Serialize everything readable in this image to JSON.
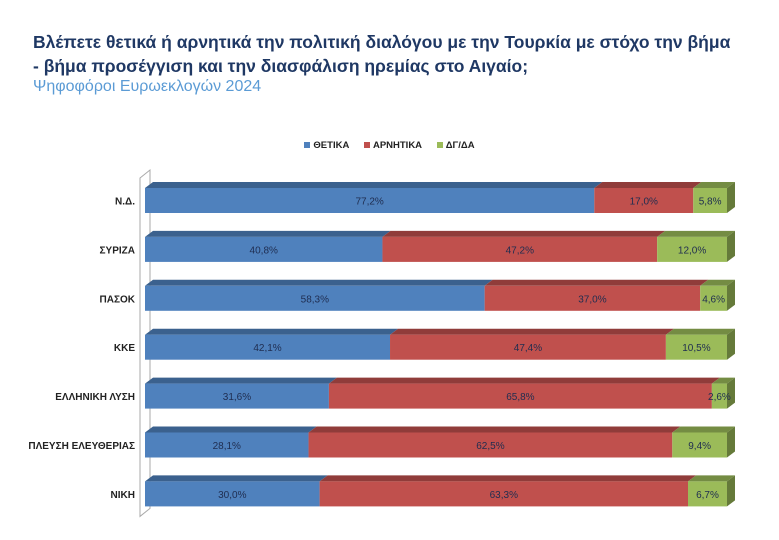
{
  "chart_data": {
    "type": "bar",
    "orientation": "horizontal",
    "stacked": "100%",
    "title": "Βλέπετε θετικά ή αρνητικά την πολιτική διαλόγου με την Τουρκία με στόχο την βήμα - βήμα προσέγγιση και την διασφάλιση ηρεμίας στο Αιγαίο;",
    "subtitle": "Ψηφοφόροι Ευρωεκλογών 2024",
    "legend_position": "top",
    "grid": false,
    "xlim": [
      0,
      100
    ],
    "categories": [
      "Ν.Δ.",
      "ΣΥΡΙΖΑ",
      "ΠΑΣΟΚ",
      "ΚΚΕ",
      "ΕΛΛΗΝΙΚΗ ΛΥΣΗ",
      "ΠΛΕΥΣΗ ΕΛΕΥΘΕΡΙΑΣ",
      "ΝΙΚΗ"
    ],
    "series": [
      {
        "name": "ΘΕΤΙΚΑ",
        "color": "#4f81bd",
        "values": [
          77.2,
          40.8,
          58.3,
          42.1,
          31.6,
          28.1,
          30.0
        ],
        "labels": [
          "77,2%",
          "40,8%",
          "58,3%",
          "42,1%",
          "31,6%",
          "28,1%",
          "30,0%"
        ]
      },
      {
        "name": "ΑΡΝΗΤΙΚΑ",
        "color": "#c0504d",
        "values": [
          17.0,
          47.2,
          37.0,
          47.4,
          65.8,
          62.5,
          63.3
        ],
        "labels": [
          "17,0%",
          "47,2%",
          "37,0%",
          "47,4%",
          "65,8%",
          "62,5%",
          "63,3%"
        ]
      },
      {
        "name": "ΔΓ/ΔΑ",
        "color": "#9bbb59",
        "values": [
          5.8,
          12.0,
          4.6,
          10.5,
          2.6,
          9.4,
          6.7
        ],
        "labels": [
          "5,8%",
          "12,0%",
          "4,6%",
          "10,5%",
          "2,6%",
          "9,4%",
          "6,7%"
        ]
      }
    ]
  }
}
